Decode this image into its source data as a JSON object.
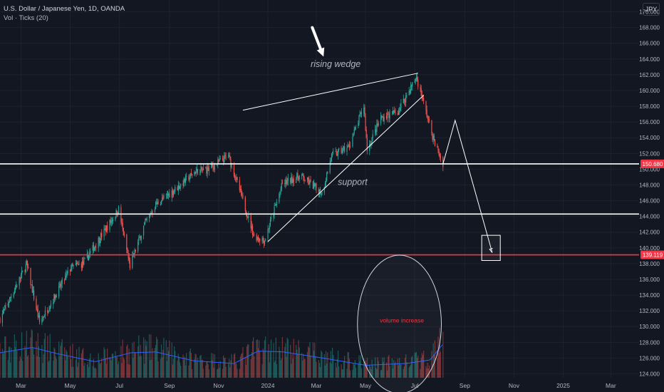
{
  "legend": {
    "symbol_line": "U.S. Dollar / Japanese Yen, 1D, OANDA",
    "indicator_line": "Vol · Ticks (20)"
  },
  "currency_badge": "JPY",
  "colors": {
    "background": "#131722",
    "up": "#26a69a",
    "down": "#ef5350",
    "axis_text": "#b2b5be",
    "drawing": "#ffffff",
    "red_line": "#f23645",
    "volume_ma": "#2962ff"
  },
  "chart_data": {
    "type": "candlestick",
    "title": "",
    "y_axis": {
      "ticks": [
        "170.000",
        "168.000",
        "166.000",
        "164.000",
        "162.000",
        "160.000",
        "158.000",
        "156.000",
        "154.000",
        "152.000",
        "150.000",
        "148.000",
        "146.000",
        "144.000",
        "142.000",
        "140.000",
        "138.000",
        "136.000",
        "134.000",
        "132.000",
        "130.000",
        "128.000",
        "126.000",
        "124.000"
      ],
      "range": [
        123.5,
        171.5
      ]
    },
    "x_axis": {
      "ticks": [
        "Mar",
        "May",
        "Jul",
        "Sep",
        "Nov",
        "2024",
        "Mar",
        "May",
        "Jul",
        "Sep",
        "Nov",
        "2025",
        "Mar"
      ],
      "range": [
        "2023-02-03",
        "2025-04-05"
      ]
    },
    "price_labels": [
      {
        "text": "150.680",
        "value": 150.68,
        "color": "#f23645"
      },
      {
        "text": "139.119",
        "value": 139.119,
        "color": "#f23645"
      }
    ],
    "price_path": [
      {
        "date": "2023-02-03",
        "price": 131.0
      },
      {
        "date": "2023-03-08",
        "price": 137.9
      },
      {
        "date": "2023-03-24",
        "price": 130.5
      },
      {
        "date": "2023-04-10",
        "price": 133.5
      },
      {
        "date": "2023-05-02",
        "price": 137.5
      },
      {
        "date": "2023-05-17",
        "price": 138.0
      },
      {
        "date": "2023-06-30",
        "price": 144.9
      },
      {
        "date": "2023-07-14",
        "price": 137.7
      },
      {
        "date": "2023-08-01",
        "price": 143.0
      },
      {
        "date": "2023-08-15",
        "price": 145.5
      },
      {
        "date": "2023-09-10",
        "price": 147.6
      },
      {
        "date": "2023-10-03",
        "price": 149.7
      },
      {
        "date": "2023-10-20",
        "price": 150.0
      },
      {
        "date": "2023-11-13",
        "price": 151.7
      },
      {
        "date": "2023-11-28",
        "price": 147.0
      },
      {
        "date": "2023-12-15",
        "price": 141.5
      },
      {
        "date": "2023-12-28",
        "price": 141.0
      },
      {
        "date": "2024-01-19",
        "price": 148.1
      },
      {
        "date": "2024-02-10",
        "price": 149.2
      },
      {
        "date": "2024-03-08",
        "price": 147.0
      },
      {
        "date": "2024-03-20",
        "price": 151.7
      },
      {
        "date": "2024-04-10",
        "price": 152.8
      },
      {
        "date": "2024-04-29",
        "price": 158.0
      },
      {
        "date": "2024-05-03",
        "price": 152.5
      },
      {
        "date": "2024-05-20",
        "price": 156.5
      },
      {
        "date": "2024-06-10",
        "price": 157.3
      },
      {
        "date": "2024-07-03",
        "price": 161.7
      },
      {
        "date": "2024-07-11",
        "price": 158.8
      },
      {
        "date": "2024-07-25",
        "price": 153.5
      },
      {
        "date": "2024-08-05",
        "price": 150.68
      }
    ],
    "volume_ma_path": [
      {
        "date": "2023-02-03",
        "ratio": 0.28
      },
      {
        "date": "2023-03-15",
        "ratio": 0.34
      },
      {
        "date": "2023-04-15",
        "ratio": 0.27
      },
      {
        "date": "2023-06-01",
        "ratio": 0.18
      },
      {
        "date": "2023-07-15",
        "ratio": 0.28
      },
      {
        "date": "2023-08-15",
        "ratio": 0.29
      },
      {
        "date": "2023-10-01",
        "ratio": 0.19
      },
      {
        "date": "2023-11-20",
        "ratio": 0.16
      },
      {
        "date": "2023-12-20",
        "ratio": 0.3
      },
      {
        "date": "2024-01-20",
        "ratio": 0.29
      },
      {
        "date": "2024-03-10",
        "ratio": 0.22
      },
      {
        "date": "2024-05-01",
        "ratio": 0.14
      },
      {
        "date": "2024-06-20",
        "ratio": 0.16
      },
      {
        "date": "2024-07-20",
        "ratio": 0.2
      },
      {
        "date": "2024-08-05",
        "ratio": 0.38
      }
    ],
    "annotations": {
      "labels": [
        {
          "text": "rising wedge",
          "date": "2024-03-25",
          "price": 163.0,
          "color": "#b2b5be"
        },
        {
          "text": "support",
          "date": "2024-04-15",
          "price": 148.0,
          "color": "#b2b5be"
        },
        {
          "text": "volume increase",
          "date": "2024-06-15",
          "volume_ratio": 0.62,
          "color": "#f23645"
        }
      ],
      "horizontal_lines": [
        {
          "price": 150.68,
          "color": "#ffffff"
        },
        {
          "price": 144.3,
          "color": "#ffffff"
        },
        {
          "price": 139.119,
          "color": "#f23645"
        }
      ],
      "wedge_upper": [
        {
          "date": "2023-12-01",
          "price": 157.5
        },
        {
          "date": "2024-07-05",
          "price": 162.2
        }
      ],
      "wedge_lower": [
        {
          "date": "2024-01-01",
          "price": 140.8
        },
        {
          "date": "2024-07-12",
          "price": 159.4
        }
      ],
      "projection": [
        {
          "date": "2024-08-05",
          "price": 150.68
        },
        {
          "date": "2024-08-20",
          "price": 156.2
        },
        {
          "date": "2024-10-05",
          "price": 139.4
        }
      ],
      "target_box": {
        "from": {
          "date": "2024-09-22",
          "price": 141.6
        },
        "to": {
          "date": "2024-10-15",
          "price": 138.4
        }
      },
      "pointer_arrow": {
        "from": {
          "date": "2024-02-25",
          "price": 168.0
        },
        "to": {
          "date": "2024-03-10",
          "price": 164.3
        }
      },
      "volume_ellipse": {
        "center_date": "2024-06-12",
        "radius_days": 52,
        "volume_ratio_center": 0.6
      }
    }
  }
}
